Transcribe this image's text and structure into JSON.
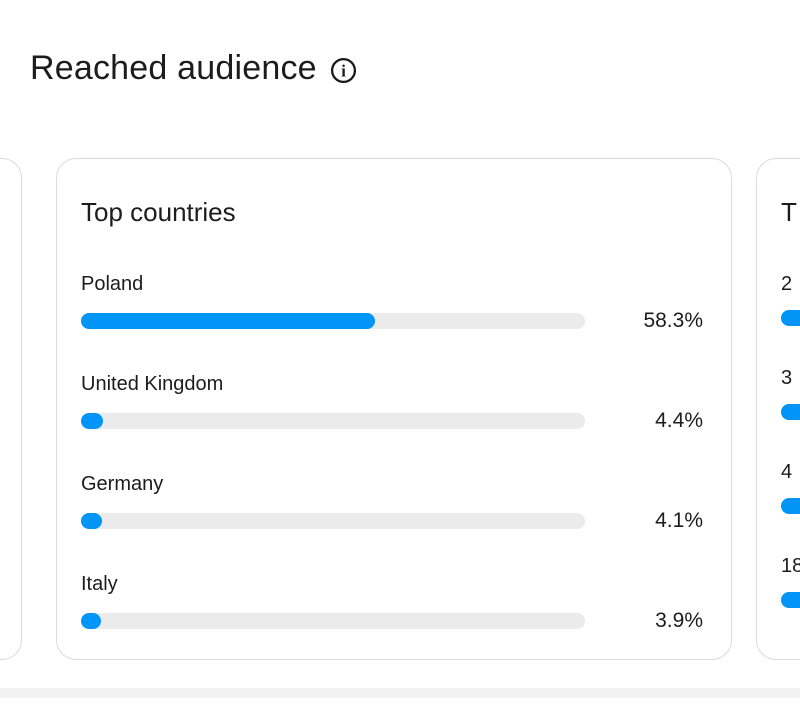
{
  "page": {
    "title": "Reached audience"
  },
  "carousel": {
    "main_card": {
      "title": "Top countries",
      "rows": [
        {
          "label": "Poland",
          "value": "58.3%",
          "pct": 58.3
        },
        {
          "label": "United Kingdom",
          "value": "4.4%",
          "pct": 4.4
        },
        {
          "label": "Germany",
          "value": "4.1%",
          "pct": 4.1
        },
        {
          "label": "Italy",
          "value": "3.9%",
          "pct": 3.9
        }
      ]
    },
    "next_card": {
      "title_partial": "T",
      "rows": [
        {
          "label_partial": "2"
        },
        {
          "label_partial": "3"
        },
        {
          "label_partial": "4"
        },
        {
          "label_partial": "18"
        }
      ]
    }
  },
  "icons": {
    "info": "info-icon"
  },
  "colors": {
    "accent_blue": "#0095f6",
    "bar_track": "#ebebeb",
    "card_border": "#dbdbdb",
    "text_primary": "#1c1c1c",
    "divider_band": "#f2f2f2"
  },
  "chart_data": {
    "type": "bar",
    "orientation": "horizontal",
    "title": "Top countries",
    "categories": [
      "Poland",
      "United Kingdom",
      "Germany",
      "Italy"
    ],
    "values": [
      58.3,
      4.4,
      4.1,
      3.9
    ],
    "value_labels": [
      "58.3%",
      "4.4%",
      "4.1%",
      "3.9%"
    ],
    "unit": "%",
    "xlim": [
      0,
      100
    ],
    "bar_color": "#0095f6",
    "track_color": "#ebebeb",
    "value_label_position": "right"
  }
}
